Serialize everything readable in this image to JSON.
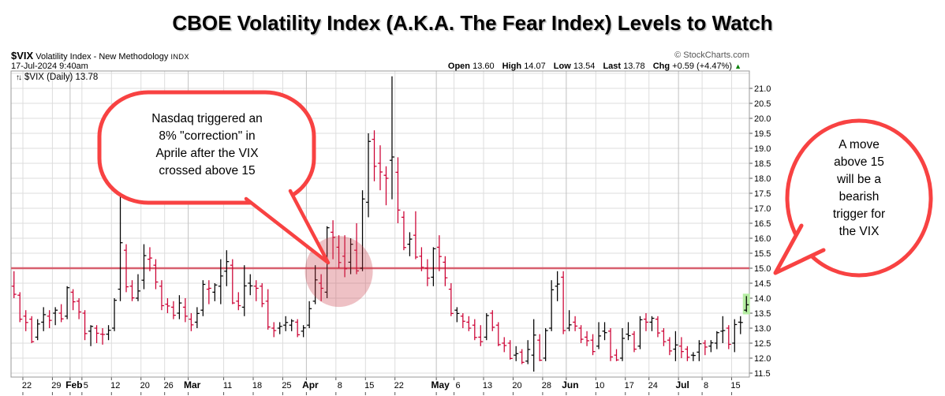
{
  "title": "CBOE Volatility Index (A.K.A. The Fear Index) Levels to Watch",
  "header": {
    "symbol": "$VIX",
    "name": "Volatility Index - New Methodology",
    "exchange": "INDX",
    "datetime": "17-Jul-2024 9:40am",
    "source": "© StockCharts.com",
    "quote": {
      "open_label": "Open",
      "open": "13.60",
      "high_label": "High",
      "high": "14.07",
      "low_label": "Low",
      "low": "13.54",
      "last_label": "Last",
      "last": "13.78",
      "chg_label": "Chg",
      "chg": "+0.59 (+4.47%)",
      "direction_icon": "▲"
    }
  },
  "legend": {
    "icon_glyph": "↑↓",
    "text": "$VIX (Daily) 13.78"
  },
  "annotations": {
    "left_bubble": "Nasdaq triggered an\n8% \"correction\" in\nAprile after the VIX\ncrossed above 15",
    "right_bubble": "A move\nabove 15\nwill be a\nbearish\ntrigger for\nthe VIX"
  },
  "colors": {
    "bar_up": "#000000",
    "bar_down": "#cc0033",
    "hline": "#d75f6e",
    "highlight_ellipse": "rgba(203,62,74,0.32)",
    "last_bar_bg": "#b5eda2",
    "bubble_stroke": "#f84242",
    "grid": "#dddddd",
    "grid_month": "#c2c2c2",
    "frame": "#999999",
    "tick": "#555555",
    "chg_up": "#008000"
  },
  "chart_data": {
    "type": "bar",
    "style": "daily OHLC bars",
    "title": "$VIX (Daily)",
    "last_value": 13.78,
    "ylim": [
      11.37,
      21.58
    ],
    "y_tick_min": 11.5,
    "y_tick_max": 21.0,
    "y_grid_max": 21.5,
    "y_step": 0.5,
    "hline": 15.0,
    "legend_position": "top-left",
    "grid": true,
    "highlight_last_bar": true,
    "highlight_ellipse": {
      "x_index": 55,
      "value": 15.05,
      "note": "region where VIX crossed above 15 in early April"
    },
    "x_ticks": [
      [
        2,
        "22",
        0
      ],
      [
        7,
        "29",
        0
      ],
      [
        10,
        "Feb",
        1
      ],
      [
        12,
        "5",
        0
      ],
      [
        17,
        "12",
        0
      ],
      [
        22,
        "20",
        0
      ],
      [
        26,
        "26",
        0
      ],
      [
        30,
        "Mar",
        1
      ],
      [
        36,
        "11",
        0
      ],
      [
        41,
        "18",
        0
      ],
      [
        46,
        "25",
        0
      ],
      [
        50,
        "Apr",
        1
      ],
      [
        55,
        "8",
        0
      ],
      [
        60,
        "15",
        0
      ],
      [
        65,
        "22",
        0
      ],
      [
        72,
        "May",
        1
      ],
      [
        75,
        "6",
        0
      ],
      [
        80,
        "13",
        0
      ],
      [
        85,
        "20",
        0
      ],
      [
        90,
        "28",
        0
      ],
      [
        94,
        "Jun",
        1
      ],
      [
        99,
        "10",
        0
      ],
      [
        104,
        "17",
        0
      ],
      [
        108,
        "24",
        0
      ],
      [
        113,
        "Jul",
        1
      ],
      [
        117,
        "8",
        0
      ],
      [
        122,
        "15",
        0
      ]
    ],
    "month_indices": [
      10,
      30,
      50,
      72,
      94,
      113
    ],
    "bars_format": [
      "date",
      "open",
      "high",
      "low",
      "close"
    ],
    "bars": [
      [
        "Jan 18",
        14.4,
        14.9,
        14.0,
        14.13
      ],
      [
        "Jan 19",
        14.1,
        14.2,
        13.2,
        13.3
      ],
      [
        "Jan 22",
        13.4,
        13.6,
        12.9,
        13.19
      ],
      [
        "Jan 23",
        13.3,
        13.4,
        12.5,
        12.55
      ],
      [
        "Jan 24",
        12.7,
        13.3,
        12.6,
        13.14
      ],
      [
        "Jan 25",
        13.2,
        13.7,
        12.9,
        13.45
      ],
      [
        "Jan 26",
        13.4,
        13.6,
        13.0,
        13.26
      ],
      [
        "Jan 29",
        13.5,
        13.7,
        13.1,
        13.6
      ],
      [
        "Jan 30",
        13.5,
        13.8,
        13.2,
        13.31
      ],
      [
        "Jan 31",
        13.4,
        14.4,
        13.3,
        14.35
      ],
      [
        "Feb 1",
        14.2,
        14.3,
        13.6,
        13.88
      ],
      [
        "Feb 2",
        13.9,
        14.0,
        13.3,
        13.54
      ],
      [
        "Feb 5",
        13.5,
        13.6,
        12.6,
        12.82
      ],
      [
        "Feb 6",
        12.9,
        13.1,
        12.4,
        13.06
      ],
      [
        "Feb 7",
        13.0,
        13.1,
        12.5,
        12.83
      ],
      [
        "Feb 8",
        12.8,
        13.0,
        12.45,
        12.79
      ],
      [
        "Feb 9",
        12.8,
        13.1,
        12.6,
        12.93
      ],
      [
        "Feb 12",
        13.0,
        14.0,
        12.9,
        13.93
      ],
      [
        "Feb 13",
        14.3,
        17.7,
        13.9,
        15.85
      ],
      [
        "Feb 14",
        15.6,
        15.8,
        14.2,
        14.38
      ],
      [
        "Feb 15",
        14.4,
        14.6,
        13.9,
        14.01
      ],
      [
        "Feb 16",
        14.0,
        14.8,
        13.9,
        14.24
      ],
      [
        "Feb 20",
        14.6,
        15.8,
        14.3,
        15.42
      ],
      [
        "Feb 21",
        15.3,
        15.7,
        14.9,
        15.34
      ],
      [
        "Feb 22",
        15.1,
        15.3,
        14.3,
        14.54
      ],
      [
        "Feb 23",
        14.4,
        14.6,
        13.6,
        13.75
      ],
      [
        "Feb 26",
        13.8,
        14.0,
        13.5,
        13.74
      ],
      [
        "Feb 27",
        13.7,
        13.9,
        13.3,
        13.43
      ],
      [
        "Feb 28",
        13.5,
        14.1,
        13.3,
        13.84
      ],
      [
        "Feb 29",
        13.7,
        14.0,
        13.2,
        13.4
      ],
      [
        "Mar 1",
        13.3,
        13.5,
        12.9,
        13.11
      ],
      [
        "Mar 4",
        13.2,
        13.7,
        13.0,
        13.49
      ],
      [
        "Mar 5",
        13.6,
        14.6,
        13.4,
        14.46
      ],
      [
        "Mar 6",
        14.3,
        14.6,
        13.8,
        14.33
      ],
      [
        "Mar 7",
        14.2,
        14.5,
        13.9,
        14.44
      ],
      [
        "Mar 8",
        14.4,
        15.3,
        13.8,
        14.74
      ],
      [
        "Mar 11",
        14.9,
        15.6,
        14.4,
        15.22
      ],
      [
        "Mar 12",
        15.1,
        15.3,
        13.8,
        13.84
      ],
      [
        "Mar 13",
        13.9,
        14.2,
        13.6,
        13.75
      ],
      [
        "Mar 14",
        13.7,
        15.1,
        13.4,
        14.41
      ],
      [
        "Mar 15",
        14.5,
        14.8,
        14.1,
        14.41
      ],
      [
        "Mar 18",
        14.4,
        14.6,
        13.9,
        14.33
      ],
      [
        "Mar 19",
        14.4,
        14.5,
        13.7,
        13.82
      ],
      [
        "Mar 20",
        13.9,
        14.3,
        12.95,
        13.04
      ],
      [
        "Mar 21",
        13.0,
        13.2,
        12.7,
        12.92
      ],
      [
        "Mar 22",
        13.0,
        13.2,
        12.8,
        13.06
      ],
      [
        "Mar 25",
        13.1,
        13.4,
        12.9,
        13.19
      ],
      [
        "Mar 26",
        13.1,
        13.3,
        12.9,
        13.24
      ],
      [
        "Mar 27",
        13.2,
        13.3,
        12.7,
        12.78
      ],
      [
        "Mar 28",
        12.9,
        13.1,
        12.7,
        13.01
      ],
      [
        "Apr 1",
        13.1,
        13.9,
        13.0,
        13.65
      ],
      [
        "Apr 2",
        13.9,
        15.1,
        13.8,
        14.61
      ],
      [
        "Apr 3",
        14.5,
        14.8,
        13.9,
        14.33
      ],
      [
        "Apr 4",
        14.2,
        16.4,
        14.0,
        16.35
      ],
      [
        "Apr 5",
        16.2,
        16.6,
        15.3,
        16.03
      ],
      [
        "Apr 8",
        15.7,
        16.1,
        15.0,
        15.19
      ],
      [
        "Apr 9",
        15.4,
        16.1,
        14.7,
        14.98
      ],
      [
        "Apr 10",
        15.2,
        16.0,
        14.8,
        15.8
      ],
      [
        "Apr 11",
        15.6,
        16.5,
        14.8,
        14.91
      ],
      [
        "Apr 12",
        15.0,
        17.6,
        14.9,
        17.31
      ],
      [
        "Apr 15",
        17.2,
        19.5,
        16.7,
        19.23
      ],
      [
        "Apr 16",
        19.3,
        19.6,
        17.9,
        18.4
      ],
      [
        "Apr 17",
        18.5,
        19.1,
        17.6,
        18.21
      ],
      [
        "Apr 18",
        18.1,
        18.4,
        17.1,
        18.0
      ],
      [
        "Apr 19",
        18.6,
        21.4,
        17.3,
        18.71
      ],
      [
        "Apr 22",
        18.2,
        18.7,
        16.5,
        16.94
      ],
      [
        "Apr 23",
        16.7,
        16.9,
        15.6,
        15.69
      ],
      [
        "Apr 24",
        15.8,
        16.2,
        15.4,
        15.97
      ],
      [
        "Apr 25",
        16.1,
        16.9,
        15.3,
        15.37
      ],
      [
        "Apr 26",
        15.4,
        15.7,
        14.9,
        15.03
      ],
      [
        "Apr 29",
        15.0,
        15.3,
        14.4,
        14.67
      ],
      [
        "Apr 30",
        14.7,
        15.7,
        14.4,
        15.65
      ],
      [
        "May 1",
        15.7,
        16.1,
        14.9,
        15.39
      ],
      [
        "May 2",
        15.2,
        15.4,
        14.4,
        14.68
      ],
      [
        "May 3",
        14.3,
        14.5,
        13.4,
        13.49
      ],
      [
        "May 6",
        13.6,
        13.7,
        13.2,
        13.49
      ],
      [
        "May 7",
        13.4,
        13.5,
        13.0,
        13.23
      ],
      [
        "May 8",
        13.2,
        13.4,
        12.9,
        13.0
      ],
      [
        "May 9",
        13.1,
        13.3,
        12.6,
        12.69
      ],
      [
        "May 10",
        12.7,
        13.1,
        12.4,
        12.55
      ],
      [
        "May 13",
        12.7,
        13.5,
        12.6,
        13.42
      ],
      [
        "May 14",
        13.5,
        13.6,
        12.9,
        13.03
      ],
      [
        "May 15",
        13.1,
        13.2,
        12.4,
        12.45
      ],
      [
        "May 16",
        12.5,
        12.7,
        12.2,
        12.42
      ],
      [
        "May 17",
        12.5,
        12.6,
        11.95,
        11.99
      ],
      [
        "May 20",
        12.1,
        12.4,
        11.9,
        12.15
      ],
      [
        "May 21",
        12.2,
        12.3,
        11.8,
        11.86
      ],
      [
        "May 22",
        11.9,
        12.6,
        11.8,
        12.29
      ],
      [
        "May 23",
        12.1,
        13.3,
        11.55,
        12.77
      ],
      [
        "May 24",
        12.6,
        12.8,
        11.9,
        11.93
      ],
      [
        "May 28",
        12.0,
        13.0,
        11.9,
        12.92
      ],
      [
        "May 29",
        13.0,
        14.6,
        12.9,
        14.28
      ],
      [
        "May 30",
        14.4,
        14.9,
        13.9,
        14.47
      ],
      [
        "May 31",
        14.7,
        14.9,
        12.8,
        12.92
      ],
      [
        "Jun 3",
        13.0,
        13.6,
        12.9,
        13.11
      ],
      [
        "Jun 4",
        13.2,
        13.4,
        12.9,
        13.07
      ],
      [
        "Jun 5",
        13.0,
        13.1,
        12.5,
        12.63
      ],
      [
        "Jun 6",
        12.7,
        12.9,
        12.4,
        12.58
      ],
      [
        "Jun 7",
        12.6,
        12.8,
        12.1,
        12.22
      ],
      [
        "Jun 10",
        12.4,
        13.2,
        12.3,
        12.74
      ],
      [
        "Jun 11",
        12.9,
        13.2,
        12.6,
        12.85
      ],
      [
        "Jun 12",
        12.9,
        13.0,
        11.9,
        12.04
      ],
      [
        "Jun 13",
        12.1,
        12.3,
        11.9,
        11.94
      ],
      [
        "Jun 14",
        12.0,
        13.0,
        11.9,
        12.66
      ],
      [
        "Jun 17",
        12.8,
        13.2,
        12.6,
        12.75
      ],
      [
        "Jun 18",
        12.8,
        12.9,
        12.2,
        12.3
      ],
      [
        "Jun 20",
        12.4,
        13.4,
        12.3,
        13.28
      ],
      [
        "Jun 21",
        13.3,
        13.5,
        12.9,
        13.2
      ],
      [
        "Jun 24",
        13.2,
        13.4,
        12.9,
        13.33
      ],
      [
        "Jun 25",
        13.3,
        13.4,
        12.7,
        12.84
      ],
      [
        "Jun 26",
        12.9,
        13.0,
        12.4,
        12.55
      ],
      [
        "Jun 27",
        12.6,
        12.7,
        12.1,
        12.24
      ],
      [
        "Jun 28",
        12.3,
        12.9,
        11.9,
        12.44
      ],
      [
        "Jul 1",
        12.4,
        12.7,
        12.0,
        12.22
      ],
      [
        "Jul 2",
        12.3,
        12.4,
        11.9,
        12.03
      ],
      [
        "Jul 3",
        12.1,
        12.2,
        11.9,
        12.09
      ],
      [
        "Jul 5",
        12.2,
        12.6,
        11.9,
        12.48
      ],
      [
        "Jul 8",
        12.5,
        12.6,
        12.1,
        12.37
      ],
      [
        "Jul 9",
        12.4,
        12.6,
        12.2,
        12.51
      ],
      [
        "Jul 10",
        12.5,
        12.9,
        12.3,
        12.85
      ],
      [
        "Jul 11",
        12.9,
        13.4,
        12.5,
        12.92
      ],
      [
        "Jul 12",
        13.0,
        13.1,
        12.3,
        12.46
      ],
      [
        "Jul 15",
        12.5,
        13.3,
        12.2,
        13.12
      ],
      [
        "Jul 16",
        13.2,
        13.4,
        12.8,
        13.19
      ],
      [
        "Jul 17",
        13.6,
        14.07,
        13.54,
        13.78
      ]
    ]
  }
}
